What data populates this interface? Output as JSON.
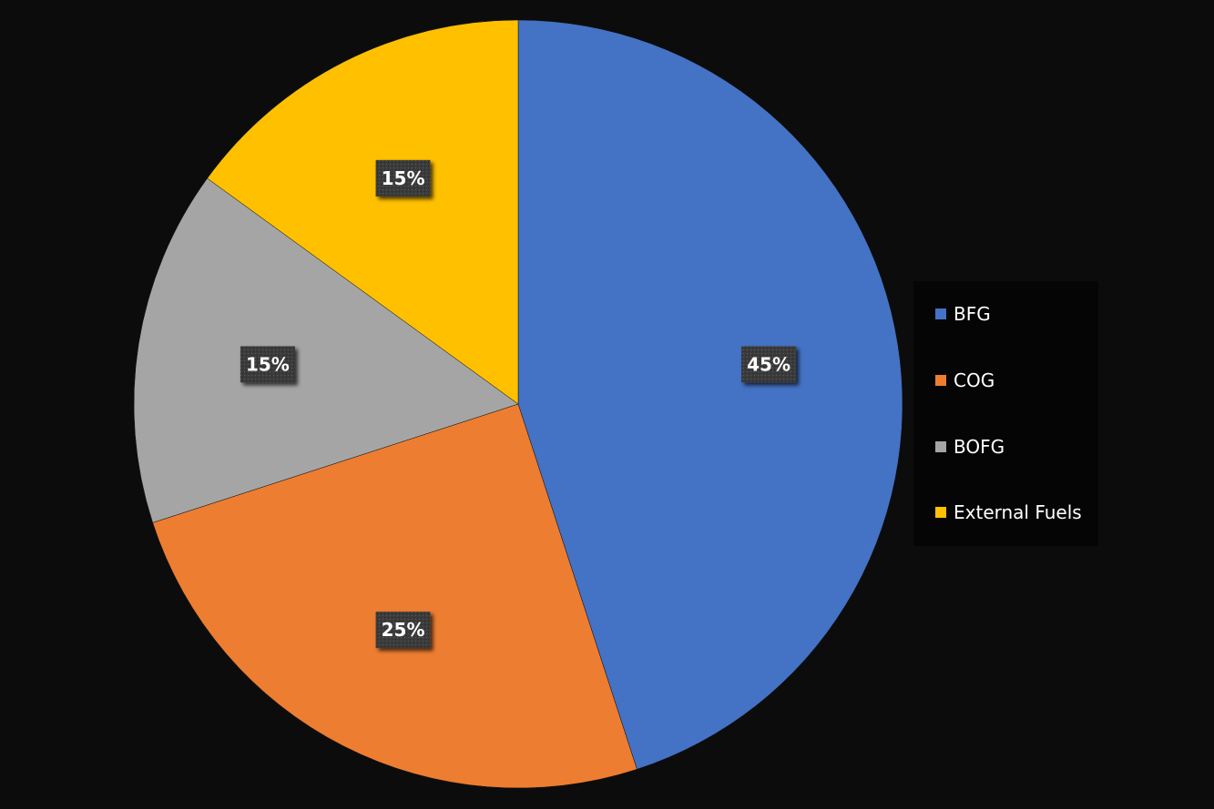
{
  "chart_data": {
    "type": "pie",
    "title": "",
    "slices": [
      {
        "label": "BFG",
        "value": 45,
        "data_label": "45%",
        "color": "#4472c4"
      },
      {
        "label": "COG",
        "value": 25,
        "data_label": "25%",
        "color": "#ed7d31"
      },
      {
        "label": "BOFG",
        "value": 15,
        "data_label": "15%",
        "color": "#a5a5a5"
      },
      {
        "label": "External Fuels",
        "value": 15,
        "data_label": "15%",
        "color": "#ffc000"
      }
    ],
    "start_angle": "12 o'clock",
    "direction": "clockwise",
    "legend_position": "right",
    "background_color": "#0c0c0c",
    "data_label_style": "dark box, bold white text"
  },
  "legend": {
    "items": [
      {
        "label": "BFG",
        "color": "#4472c4"
      },
      {
        "label": "COG",
        "color": "#ed7d31"
      },
      {
        "label": "BOFG",
        "color": "#a5a5a5"
      },
      {
        "label": "External Fuels",
        "color": "#ffc000"
      }
    ]
  }
}
